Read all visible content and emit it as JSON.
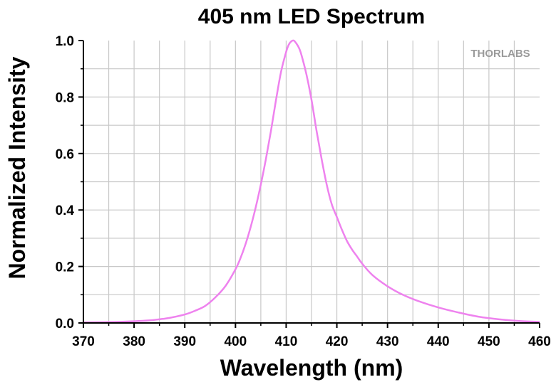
{
  "chart_data": {
    "type": "line",
    "title": "405 nm LED Spectrum",
    "xlabel": "Wavelength (nm)",
    "ylabel": "Normalized Intensity",
    "xlim": [
      370,
      460
    ],
    "ylim": [
      0,
      1.0
    ],
    "xticks": [
      "370",
      "380",
      "390",
      "400",
      "410",
      "420",
      "430",
      "440",
      "450",
      "460"
    ],
    "yticks": [
      "0.0",
      "0.2",
      "0.4",
      "0.6",
      "0.8",
      "1.0"
    ],
    "grid": true,
    "logo": "THORLABS",
    "colors": {
      "line": "#ee82ee",
      "grid": "#c8c8c8",
      "axis": "#000000"
    },
    "series": [
      {
        "x": [
          370,
          375,
          380,
          383,
          385,
          387,
          390,
          392,
          394,
          396,
          398,
          400,
          401,
          402,
          403,
          404,
          405,
          406,
          407,
          408,
          409,
          410,
          410.5,
          411,
          411.5,
          412,
          412.5,
          413,
          414,
          415,
          416,
          417,
          418,
          419,
          420,
          421,
          422,
          423,
          424,
          425,
          427,
          430,
          433,
          436,
          440,
          444,
          448,
          452,
          456,
          460
        ],
        "y": [
          0.002,
          0.003,
          0.006,
          0.009,
          0.013,
          0.018,
          0.03,
          0.043,
          0.06,
          0.09,
          0.13,
          0.19,
          0.23,
          0.28,
          0.34,
          0.41,
          0.49,
          0.58,
          0.68,
          0.79,
          0.89,
          0.96,
          0.985,
          0.997,
          1.0,
          0.99,
          0.975,
          0.95,
          0.88,
          0.79,
          0.68,
          0.58,
          0.49,
          0.42,
          0.375,
          0.33,
          0.29,
          0.26,
          0.235,
          0.21,
          0.17,
          0.13,
          0.1,
          0.078,
          0.055,
          0.037,
          0.022,
          0.013,
          0.007,
          0.004
        ]
      }
    ]
  }
}
